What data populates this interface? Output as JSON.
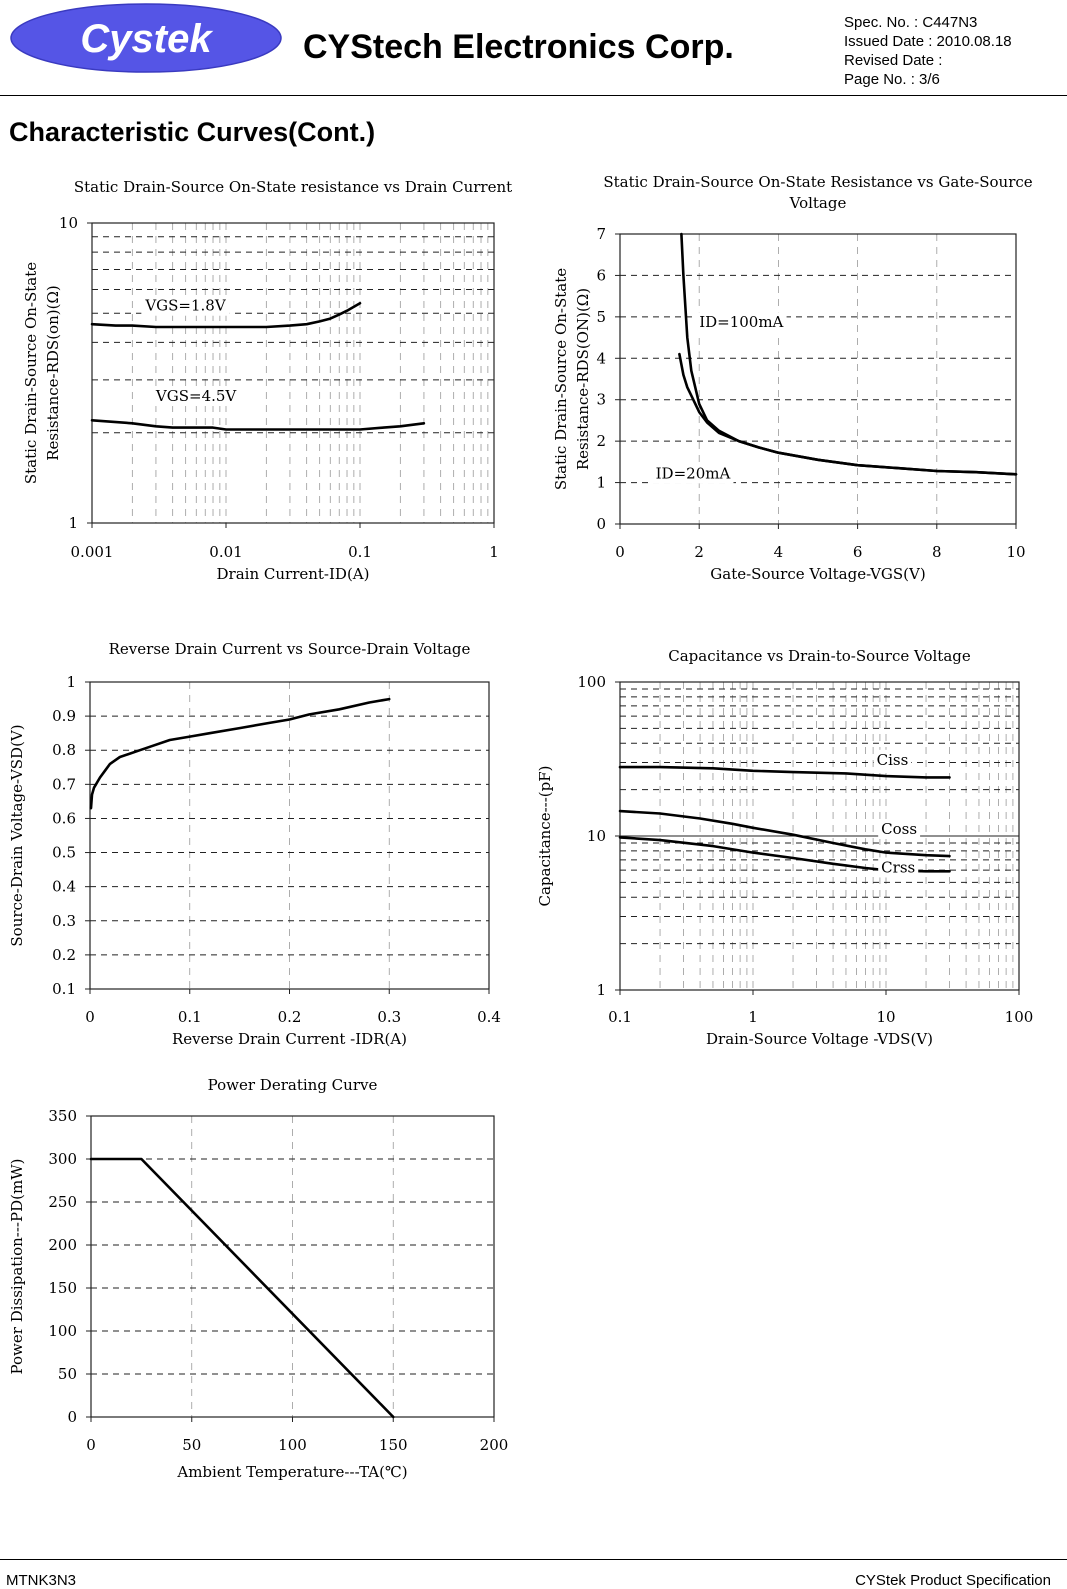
{
  "header": {
    "logo_text": "Cystek",
    "company": "CYStech Electronics Corp.",
    "spec_no": "Spec. No. : C447N3",
    "issued_date": "Issued Date : 2010.08.18",
    "revised_date": "Revised Date :",
    "page_no": "Page No. : 3/6"
  },
  "section_title": "Characteristic Curves(Cont.)",
  "footer": {
    "left": "MTNK3N3",
    "right": "CYStek Product Specification"
  },
  "chart_data": [
    {
      "id": "rds-vs-id",
      "type": "line",
      "title": "Static Drain-Source On-State resistance vs Drain Current",
      "xlabel": "Drain Current-ID(A)",
      "ylabel": [
        "Static Drain-Source On-State",
        "Resistance-RDS(on)(Ω)"
      ],
      "xscale": "log",
      "yscale": "log",
      "xlim": [
        0.001,
        1
      ],
      "ylim": [
        1,
        10
      ],
      "xticks": [
        0.001,
        0.01,
        0.1,
        1
      ],
      "xtick_labels": [
        "0.001",
        "0.01",
        "0.1",
        "1"
      ],
      "yticks": [
        1,
        10
      ],
      "ytick_labels": [
        "1",
        "10"
      ],
      "series": [
        {
          "name": "VGS=1.8V",
          "label": "VGS=1.8V",
          "label_at": [
            0.0025,
            5.1
          ],
          "x": [
            0.001,
            0.0015,
            0.002,
            0.003,
            0.005,
            0.01,
            0.02,
            0.03,
            0.04,
            0.05,
            0.06,
            0.07,
            0.08,
            0.1
          ],
          "y": [
            4.6,
            4.55,
            4.55,
            4.5,
            4.5,
            4.5,
            4.5,
            4.55,
            4.6,
            4.7,
            4.8,
            4.95,
            5.1,
            5.4
          ]
        },
        {
          "name": "VGS=4.5V",
          "label": "VGS=4.5V",
          "label_at": [
            0.003,
            2.55
          ],
          "x": [
            0.001,
            0.002,
            0.003,
            0.004,
            0.005,
            0.008,
            0.01,
            0.02,
            0.05,
            0.08,
            0.1,
            0.15,
            0.2,
            0.3
          ],
          "y": [
            2.2,
            2.15,
            2.1,
            2.08,
            2.08,
            2.08,
            2.05,
            2.05,
            2.05,
            2.05,
            2.05,
            2.08,
            2.1,
            2.15
          ]
        }
      ]
    },
    {
      "id": "rds-vs-vgs",
      "type": "line",
      "title": [
        "Static Drain-Source On-State Resistance vs Gate-Source",
        "Voltage"
      ],
      "xlabel": "Gate-Source Voltage-VGS(V)",
      "ylabel": [
        "Static Drain-Source On-State",
        "Resistance-RDS(ON)(Ω)"
      ],
      "xscale": "linear",
      "yscale": "linear",
      "xlim": [
        0,
        10
      ],
      "ylim": [
        0,
        7
      ],
      "xticks": [
        0,
        2,
        4,
        6,
        8,
        10
      ],
      "xtick_labels": [
        "0",
        "2",
        "4",
        "6",
        "8",
        "10"
      ],
      "yticks": [
        0,
        1,
        2,
        3,
        4,
        5,
        6,
        7
      ],
      "ytick_labels": [
        "0",
        "1",
        "2",
        "3",
        "4",
        "5",
        "6",
        "7"
      ],
      "series": [
        {
          "name": "ID=100mA",
          "label": "ID=100mA",
          "label_at": [
            2.0,
            4.75
          ],
          "x": [
            1.55,
            1.6,
            1.7,
            1.8,
            2.0,
            2.2,
            2.5,
            3.0,
            3.5,
            4.0,
            5.0,
            6.0,
            7.0,
            8.0,
            9.0,
            10.0
          ],
          "y": [
            7.0,
            6.0,
            4.5,
            3.7,
            2.9,
            2.5,
            2.25,
            2.0,
            1.85,
            1.72,
            1.55,
            1.42,
            1.35,
            1.28,
            1.25,
            1.2
          ]
        },
        {
          "name": "ID=20mA",
          "label": "ID=20mA",
          "label_at": [
            0.9,
            1.1
          ],
          "x": [
            1.5,
            1.6,
            1.7,
            1.8,
            2.0,
            2.2,
            2.5,
            3.0,
            3.5,
            4.0,
            5.0,
            6.0,
            7.0,
            8.0,
            9.0,
            10.0
          ],
          "y": [
            4.1,
            3.6,
            3.3,
            3.1,
            2.7,
            2.45,
            2.2,
            2.0,
            1.85,
            1.72,
            1.55,
            1.42,
            1.35,
            1.28,
            1.25,
            1.2
          ]
        }
      ]
    },
    {
      "id": "reverse-drain",
      "type": "line",
      "title": "Reverse Drain Current vs Source-Drain Voltage",
      "xlabel": "Reverse Drain Current -IDR(A)",
      "ylabel": "Source-Drain Voltage-VSD(V)",
      "xscale": "linear",
      "yscale": "linear",
      "xlim": [
        0,
        0.4
      ],
      "ylim": [
        0.1,
        1
      ],
      "xticks": [
        0,
        0.1,
        0.2,
        0.3,
        0.4
      ],
      "xtick_labels": [
        "0",
        "0.1",
        "0.2",
        "0.3",
        "0.4"
      ],
      "yticks": [
        0.1,
        0.2,
        0.3,
        0.4,
        0.5,
        0.6,
        0.7,
        0.8,
        0.9,
        1
      ],
      "ytick_labels": [
        "0.1",
        "0.2",
        "0.3",
        "0.4",
        "0.5",
        "0.6",
        "0.7",
        "0.8",
        "0.9",
        "1"
      ],
      "series": [
        {
          "name": "VSD",
          "x": [
            0.001,
            0.002,
            0.004,
            0.006,
            0.008,
            0.01,
            0.015,
            0.02,
            0.03,
            0.04,
            0.05,
            0.06,
            0.08,
            0.1,
            0.12,
            0.15,
            0.18,
            0.2,
            0.22,
            0.25,
            0.28,
            0.3
          ],
          "y": [
            0.63,
            0.67,
            0.69,
            0.7,
            0.71,
            0.72,
            0.74,
            0.76,
            0.78,
            0.79,
            0.8,
            0.81,
            0.83,
            0.84,
            0.85,
            0.865,
            0.88,
            0.89,
            0.905,
            0.92,
            0.94,
            0.95
          ]
        }
      ]
    },
    {
      "id": "capacitance",
      "type": "line",
      "title": "Capacitance vs Drain-to-Source Voltage",
      "xlabel": "Drain-Source Voltage -VDS(V)",
      "ylabel": "Capacitance---(pF)",
      "xscale": "log",
      "yscale": "log",
      "xlim": [
        0.1,
        100
      ],
      "ylim": [
        1,
        100
      ],
      "xticks": [
        0.1,
        1,
        10,
        100
      ],
      "xtick_labels": [
        "0.1",
        "1",
        "10",
        "100"
      ],
      "yticks": [
        1,
        10,
        100
      ],
      "ytick_labels": [
        "1",
        "10",
        "100"
      ],
      "series": [
        {
          "name": "Ciss",
          "label": "Ciss",
          "label_at": [
            8.5,
            29
          ],
          "x": [
            0.1,
            0.2,
            0.5,
            1,
            2,
            5,
            10,
            20,
            30
          ],
          "y": [
            28,
            28,
            27.5,
            26.5,
            26,
            25.5,
            24.5,
            24,
            24
          ]
        },
        {
          "name": "Coss",
          "label": "Coss",
          "label_at": [
            9.2,
            10.3
          ],
          "x": [
            0.1,
            0.2,
            0.4,
            0.7,
            1,
            2,
            4,
            7,
            10,
            20,
            30
          ],
          "y": [
            14.5,
            14,
            13,
            12,
            11.3,
            10.2,
            9,
            8.2,
            7.8,
            7.5,
            7.4
          ]
        },
        {
          "name": "Crss",
          "label": "Crss",
          "label_at": [
            9.2,
            5.8
          ],
          "x": [
            0.1,
            0.2,
            0.5,
            1,
            2,
            4,
            7,
            10,
            20,
            30
          ],
          "y": [
            9.8,
            9.4,
            8.6,
            7.8,
            7.2,
            6.6,
            6.2,
            6.0,
            5.9,
            5.9
          ]
        }
      ]
    },
    {
      "id": "power-derating",
      "type": "line",
      "title": "Power Derating Curve",
      "xlabel": "Ambient Temperature---TA(℃)",
      "ylabel": "Power Dissipation---PD(mW)",
      "xscale": "linear",
      "yscale": "linear",
      "xlim": [
        0,
        200
      ],
      "ylim": [
        0,
        350
      ],
      "xticks": [
        0,
        50,
        100,
        150,
        200
      ],
      "xtick_labels": [
        "0",
        "50",
        "100",
        "150",
        "200"
      ],
      "yticks": [
        0,
        50,
        100,
        150,
        200,
        250,
        300,
        350
      ],
      "ytick_labels": [
        "0",
        "50",
        "100",
        "150",
        "200",
        "250",
        "300",
        "350"
      ],
      "series": [
        {
          "name": "PD",
          "x": [
            0,
            25,
            150
          ],
          "y": [
            300,
            300,
            0
          ]
        }
      ]
    }
  ]
}
